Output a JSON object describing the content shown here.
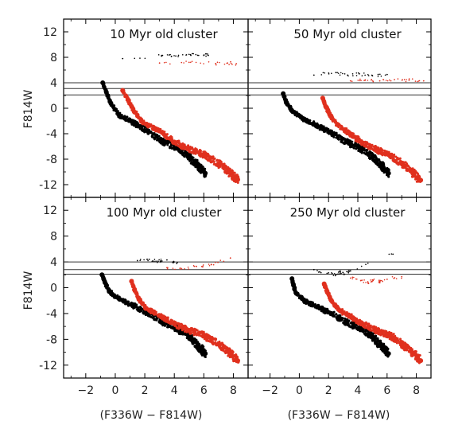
{
  "chart_data": {
    "type": "scatter",
    "layout": "2x2",
    "xlabel": "(F336W − F814W)",
    "ylabel": "F814W",
    "xlim": [
      -3.5,
      9
    ],
    "ylim": [
      -14,
      14
    ],
    "y_inverted": false,
    "xticks": [
      -2,
      0,
      2,
      4,
      6,
      8
    ],
    "yticks": [
      12,
      8,
      4,
      0,
      -4,
      -8,
      -12
    ],
    "series_colors": [
      "#000000",
      "#e0301e"
    ],
    "panels": [
      {
        "title": "10 Myr old cluster",
        "hlines": [
          4.0,
          3.1,
          2.1
        ],
        "series": [
          {
            "color": "#000000",
            "x": [
              -0.85,
              -0.6,
              -0.3,
              0.3,
              1.2,
              2.2,
              3.2,
              4.2,
              5.0,
              5.6,
              6.1
            ],
            "y": [
              4.0,
              2.5,
              0.8,
              -1.2,
              -2.2,
              -3.6,
              -5.2,
              -6.2,
              -7.6,
              -9.0,
              -10.2
            ]
          },
          {
            "color": "#e0301e",
            "x": [
              0.5,
              0.9,
              1.3,
              1.9,
              3.0,
              4.0,
              5.0,
              6.0,
              7.0,
              7.7,
              8.3
            ],
            "y": [
              2.8,
              1.2,
              -0.6,
              -2.3,
              -3.6,
              -5.3,
              -6.4,
              -7.3,
              -8.7,
              -10.0,
              -11.2
            ]
          },
          {
            "color": "#000000",
            "x": [
              0.5,
              3.2,
              4.1,
              5.1,
              6.0,
              6.3
            ],
            "y": [
              7.8,
              8.3,
              8.2,
              8.4,
              8.3,
              8.3
            ]
          },
          {
            "color": "#e0301e",
            "x": [
              3.0,
              5.0,
              6.8,
              7.6,
              8.2
            ],
            "y": [
              7.1,
              7.2,
              7.0,
              7.1,
              7.0
            ]
          }
        ]
      },
      {
        "title": "50 Myr old cluster",
        "hlines": [
          4.0,
          3.1,
          2.1
        ],
        "series": [
          {
            "color": "#000000",
            "x": [
              -1.1,
              -0.9,
              -0.5,
              0.3,
              1.2,
              2.2,
              3.2,
              4.2,
              5.0,
              5.6,
              6.1
            ],
            "y": [
              2.3,
              1.0,
              -0.4,
              -1.7,
              -2.7,
              -3.9,
              -5.3,
              -6.3,
              -7.6,
              -9.0,
              -10.2
            ]
          },
          {
            "color": "#e0301e",
            "x": [
              1.6,
              1.8,
              2.1,
              2.6,
              3.4,
              4.3,
              5.2,
              6.1,
              7.0,
              7.7,
              8.3
            ],
            "y": [
              1.6,
              0.3,
              -1.1,
              -2.6,
              -3.9,
              -5.4,
              -6.4,
              -7.3,
              -8.7,
              -10.0,
              -11.3
            ]
          },
          {
            "color": "#000000",
            "x": [
              1.0,
              2.5,
              3.3,
              4.1,
              5.0,
              6.0
            ],
            "y": [
              5.2,
              5.6,
              5.2,
              5.4,
              5.1,
              5.3
            ]
          },
          {
            "color": "#e0301e",
            "x": [
              3.5,
              4.5,
              5.5,
              6.5,
              7.5,
              8.5
            ],
            "y": [
              4.3,
              4.4,
              4.3,
              4.5,
              4.4,
              4.3
            ]
          }
        ]
      },
      {
        "title": "100 Myr old cluster",
        "hlines": [
          4.0,
          2.8,
          2.1
        ],
        "series": [
          {
            "color": "#000000",
            "x": [
              -0.9,
              -0.7,
              -0.4,
              0.3,
              1.2,
              2.2,
              3.2,
              4.2,
              5.0,
              5.6,
              6.1
            ],
            "y": [
              2.0,
              0.8,
              -0.6,
              -1.8,
              -2.8,
              -3.9,
              -5.3,
              -6.3,
              -7.6,
              -9.0,
              -10.2
            ]
          },
          {
            "color": "#e0301e",
            "x": [
              1.1,
              1.3,
              1.6,
              2.1,
              3.0,
              4.0,
              5.0,
              6.0,
              7.0,
              7.7,
              8.3
            ],
            "y": [
              1.0,
              -0.3,
              -1.8,
              -3.2,
              -4.3,
              -5.6,
              -6.6,
              -7.4,
              -8.7,
              -10.0,
              -11.3
            ]
          },
          {
            "color": "#000000",
            "x": [
              1.5,
              2.3,
              2.9,
              3.5,
              4.2
            ],
            "y": [
              4.2,
              4.4,
              4.1,
              4.3,
              3.9
            ]
          },
          {
            "color": "#e0301e",
            "x": [
              3.5,
              4.5,
              5.5,
              6.5,
              7.8
            ],
            "y": [
              3.1,
              2.9,
              3.3,
              3.6,
              4.6
            ]
          }
        ]
      },
      {
        "title": "250 Myr old cluster",
        "hlines": [
          4.0,
          2.8,
          2.1
        ],
        "series": [
          {
            "color": "#000000",
            "x": [
              -0.5,
              -0.4,
              -0.2,
              0.4,
              1.3,
              2.2,
              3.2,
              4.2,
              5.0,
              5.6,
              6.1
            ],
            "y": [
              1.4,
              0.4,
              -0.9,
              -2.1,
              -3.0,
              -4.0,
              -5.3,
              -6.3,
              -7.6,
              -9.0,
              -10.2
            ]
          },
          {
            "color": "#e0301e",
            "x": [
              1.7,
              1.9,
              2.2,
              2.7,
              3.5,
              4.4,
              5.3,
              6.2,
              7.0,
              7.7,
              8.3
            ],
            "y": [
              0.6,
              -0.6,
              -2.0,
              -3.4,
              -4.5,
              -5.7,
              -6.7,
              -7.4,
              -8.7,
              -10.0,
              -11.3
            ]
          },
          {
            "color": "#000000",
            "x": [
              1.0,
              2.0,
              2.5,
              2.8,
              3.1,
              3.5,
              6.4
            ],
            "y": [
              2.8,
              2.3,
              2.0,
              2.4,
              2.1,
              2.6,
              5.2
            ]
          },
          {
            "color": "#e0301e",
            "x": [
              3.5,
              4.2,
              4.7,
              5.0,
              5.5,
              6.0,
              7.0
            ],
            "y": [
              1.5,
              1.1,
              0.8,
              1.2,
              0.9,
              1.3,
              1.7
            ]
          }
        ]
      }
    ]
  }
}
